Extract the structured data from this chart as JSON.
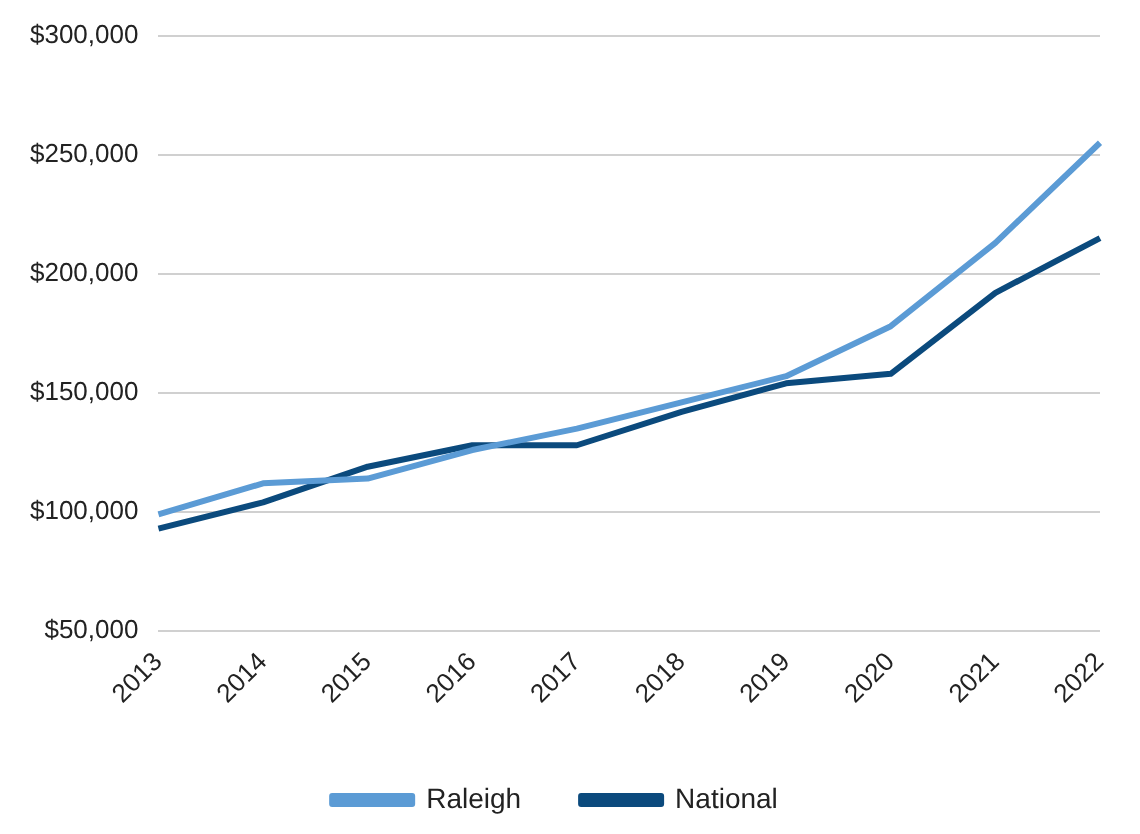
{
  "chart_data": {
    "type": "line",
    "categories": [
      "2013",
      "2014",
      "2015",
      "2016",
      "2017",
      "2018",
      "2019",
      "2020",
      "2021",
      "2022"
    ],
    "series": [
      {
        "name": "Raleigh",
        "color": "#5b9bd5",
        "values": [
          99000,
          112000,
          114000,
          126000,
          135000,
          146000,
          157000,
          178000,
          213000,
          255000
        ]
      },
      {
        "name": "National",
        "color": "#0b4a7d",
        "values": [
          93000,
          104000,
          119000,
          128000,
          128000,
          142000,
          154000,
          158000,
          192000,
          215000
        ]
      }
    ],
    "ylim": [
      50000,
      300000
    ],
    "yticks": [
      {
        "value": 50000,
        "label": "$50,000"
      },
      {
        "value": 100000,
        "label": "$100,000"
      },
      {
        "value": 150000,
        "label": "$150,000"
      },
      {
        "value": 200000,
        "label": "$200,000"
      },
      {
        "value": 250000,
        "label": "$250,000"
      },
      {
        "value": 300000,
        "label": "$300,000"
      }
    ],
    "grid": "y",
    "legend": "bottom",
    "marker": "none",
    "line_style": "solid"
  }
}
